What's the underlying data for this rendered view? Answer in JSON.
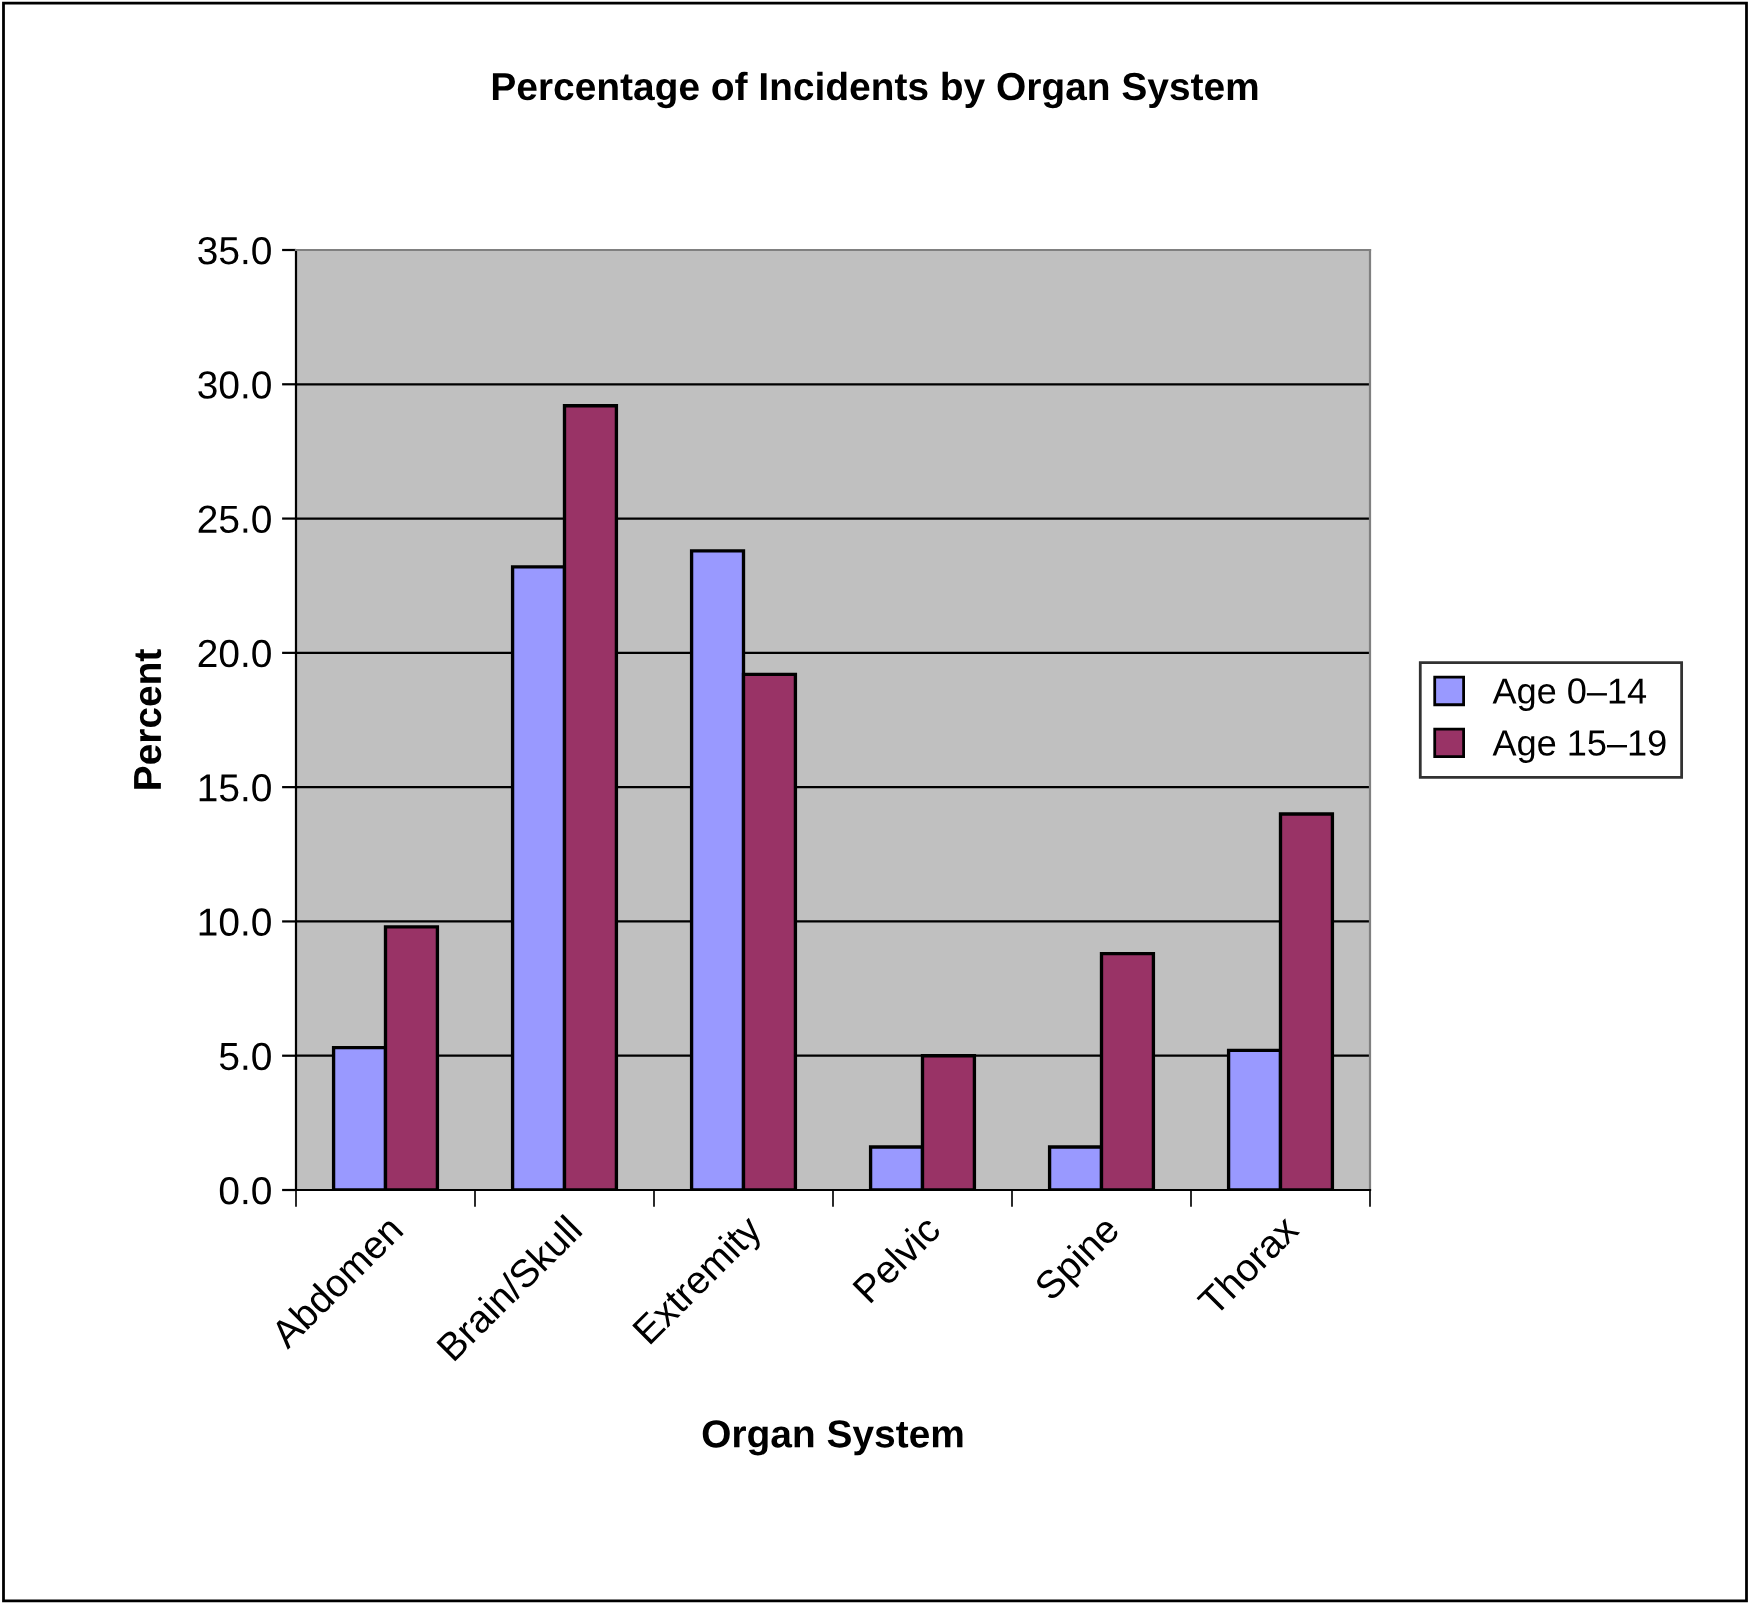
{
  "chart_data": {
    "type": "bar",
    "title": "Percentage of Incidents by Organ System",
    "xlabel": "Organ System",
    "ylabel": "Percent",
    "categories": [
      "Abdomen",
      "Brain/Skull",
      "Extremity",
      "Pelvic",
      "Spine",
      "Thorax"
    ],
    "series": [
      {
        "name": "Age 0–14",
        "color": "#9999ff",
        "values": [
          5.3,
          23.2,
          23.8,
          1.6,
          1.6,
          5.2
        ]
      },
      {
        "name": "Age 15–19",
        "color": "#993366",
        "values": [
          9.8,
          29.2,
          19.2,
          5.0,
          8.8,
          14.0
        ]
      }
    ],
    "ylim": [
      0,
      35
    ],
    "yticks": [
      {
        "value": 0,
        "label": "0.0"
      },
      {
        "value": 5,
        "label": "5.0"
      },
      {
        "value": 10,
        "label": "10.0"
      },
      {
        "value": 15,
        "label": "15.0"
      },
      {
        "value": 20,
        "label": "20.0"
      },
      {
        "value": 25,
        "label": "25.0"
      },
      {
        "value": 30,
        "label": "30.0"
      },
      {
        "value": 35,
        "label": "35.0"
      }
    ],
    "grid": "y",
    "legend": "right"
  }
}
